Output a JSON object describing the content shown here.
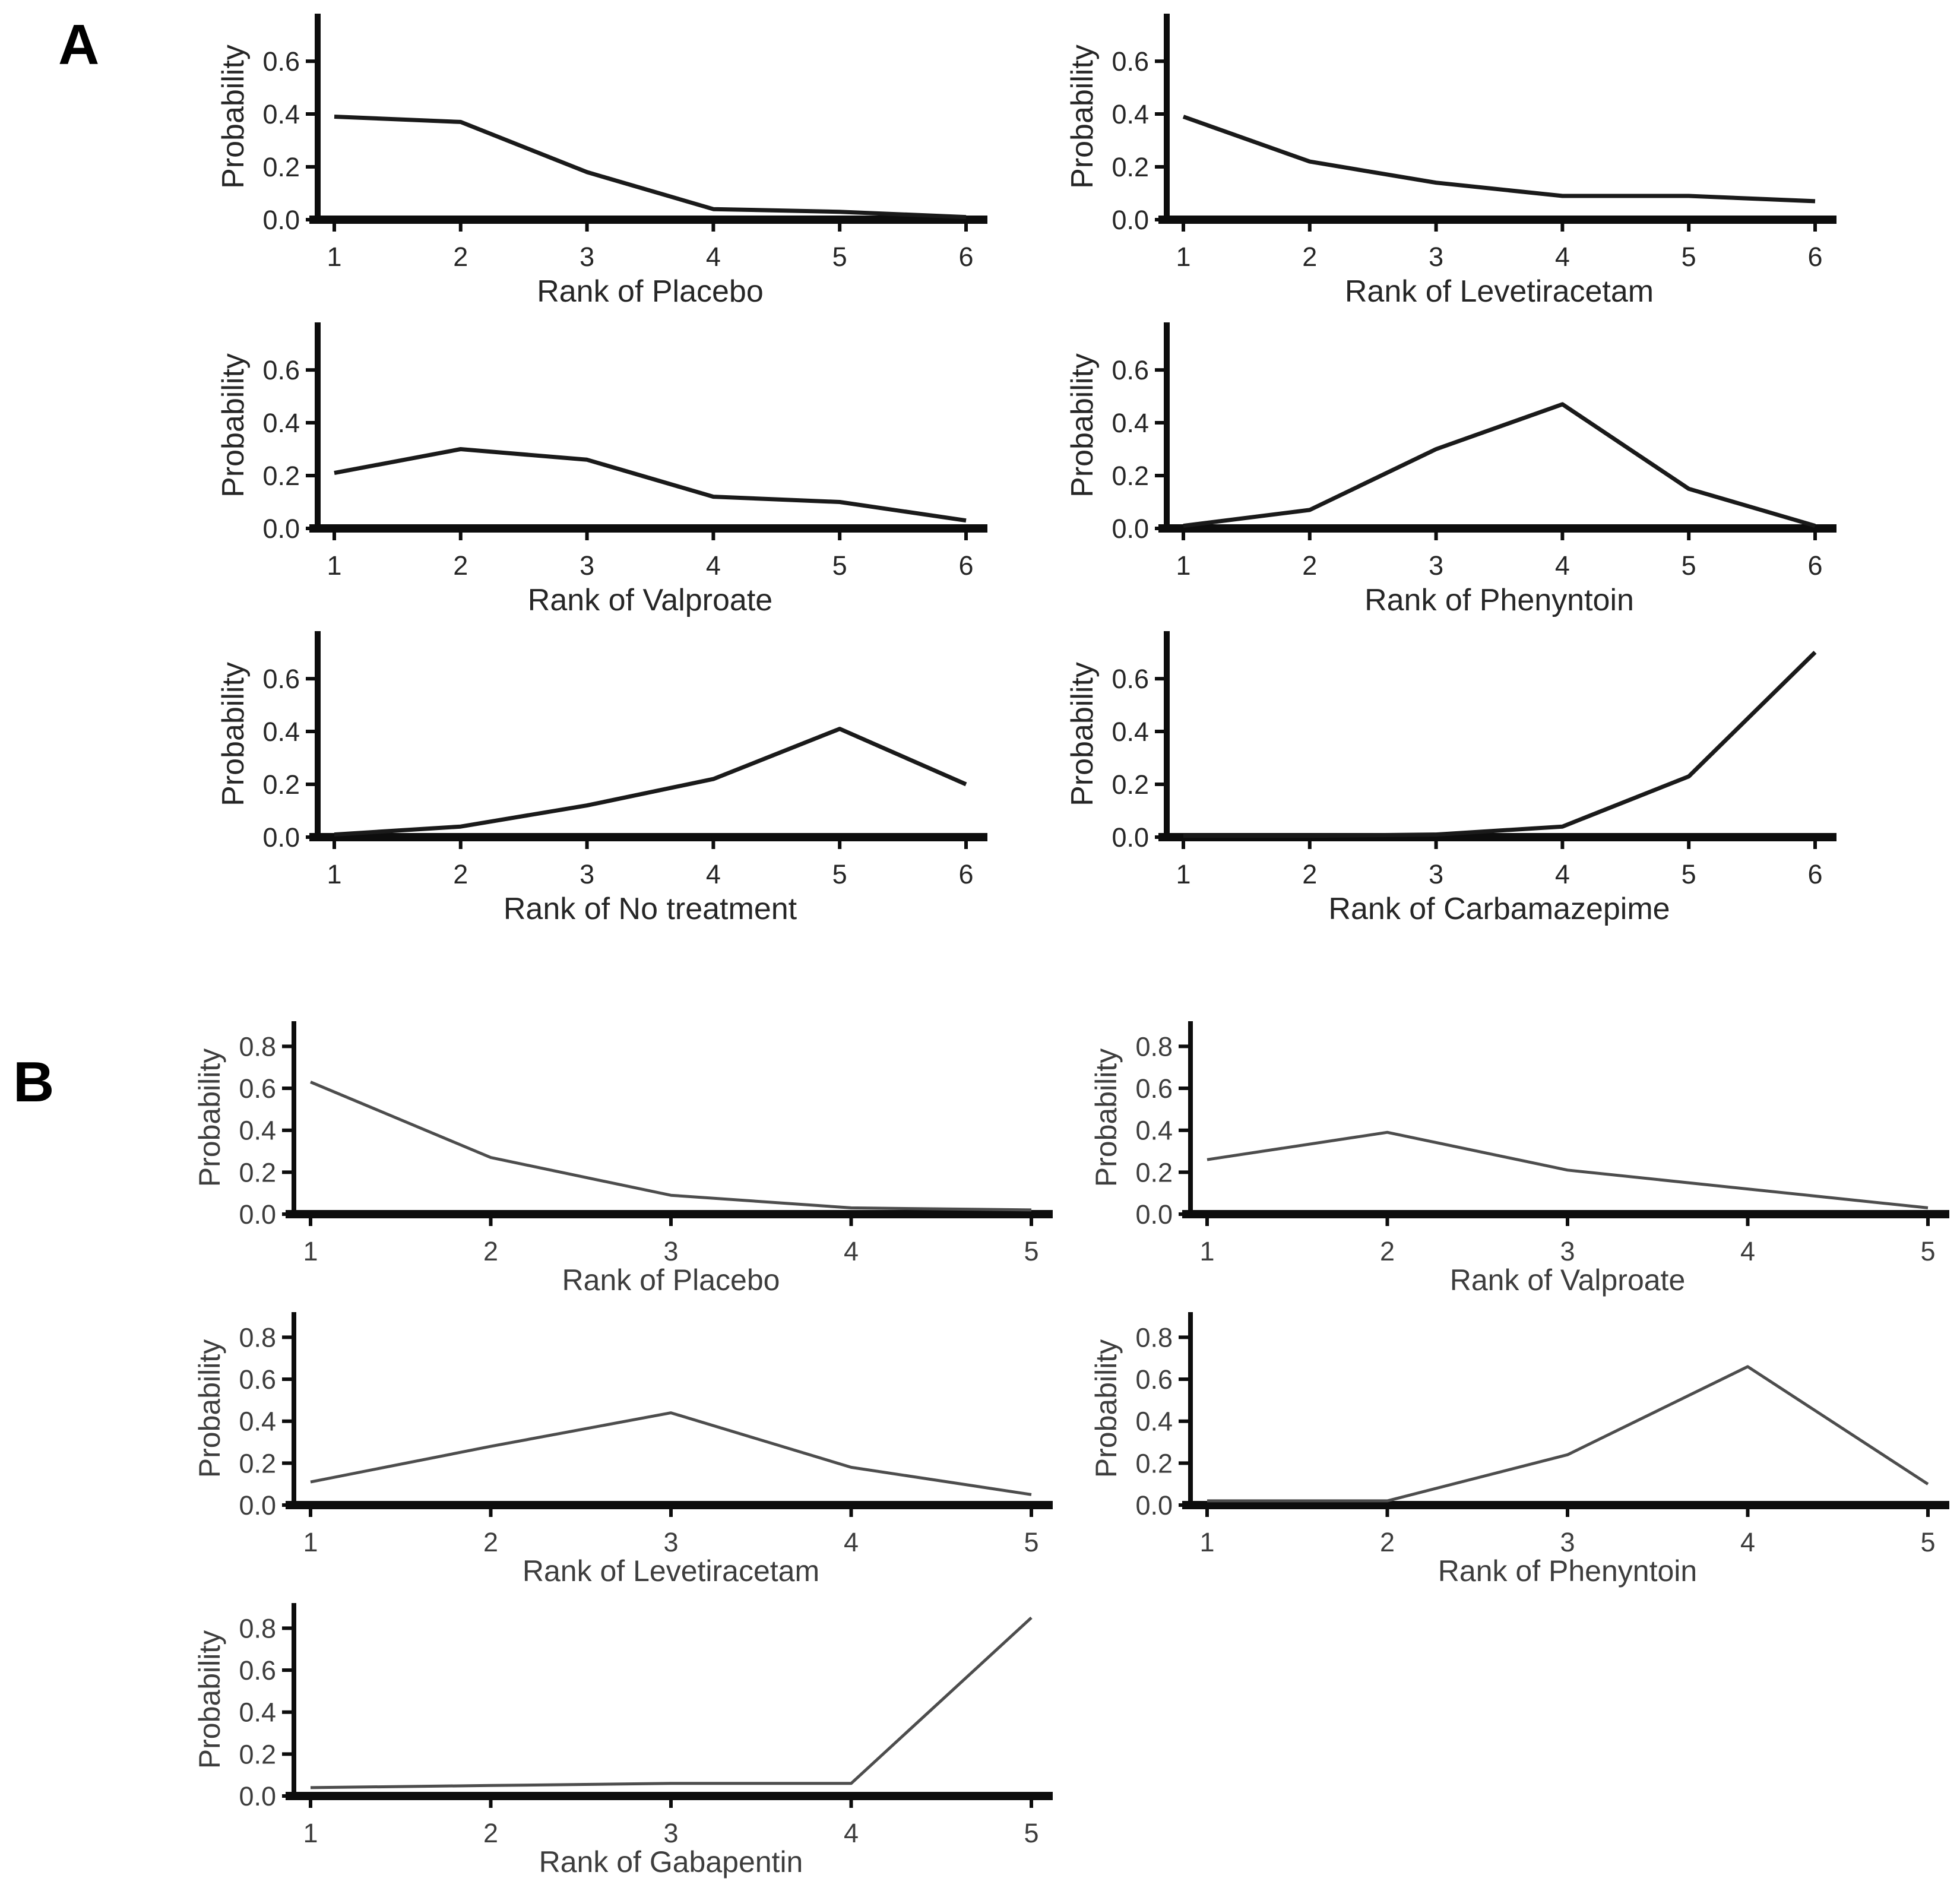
{
  "figure": {
    "background": "#ffffff",
    "line_color_a": "#1a1a1a",
    "line_color_b": "#4d4d4d",
    "axis_color": "#0d0d0d",
    "text_color_a": "#262626",
    "text_color_b": "#3d3d3d"
  },
  "panels": [
    {
      "id": "A",
      "label": "A",
      "ylabel": "Probability",
      "yticks": [
        0.0,
        0.2,
        0.4,
        0.6
      ],
      "ymax": 0.78,
      "line_color": "#1a1a1a",
      "line_width": 7,
      "text_color": "#262626"
    },
    {
      "id": "B",
      "label": "B",
      "ylabel": "Probability",
      "yticks": [
        0.0,
        0.2,
        0.4,
        0.6,
        0.8
      ],
      "ymax": 0.92,
      "line_color": "#4d4d4d",
      "line_width": 5,
      "text_color": "#3d3d3d"
    }
  ],
  "chart_data": [
    {
      "type": "line",
      "panel": "A",
      "title": "",
      "xlabel": "Rank of Placebo",
      "ylabel": "Probability",
      "x": [
        1,
        2,
        3,
        4,
        5,
        6
      ],
      "values": [
        0.39,
        0.37,
        0.18,
        0.04,
        0.03,
        0.01
      ],
      "xticks": [
        1,
        2,
        3,
        4,
        5,
        6
      ],
      "yticks": [
        0.0,
        0.2,
        0.4,
        0.6
      ],
      "ylim": [
        0,
        0.78
      ],
      "grid": false,
      "legend": false
    },
    {
      "type": "line",
      "panel": "A",
      "title": "",
      "xlabel": "Rank of Levetiracetam",
      "ylabel": "Probability",
      "x": [
        1,
        2,
        3,
        4,
        5,
        6
      ],
      "values": [
        0.39,
        0.22,
        0.14,
        0.09,
        0.09,
        0.07
      ],
      "xticks": [
        1,
        2,
        3,
        4,
        5,
        6
      ],
      "yticks": [
        0.0,
        0.2,
        0.4,
        0.6
      ],
      "ylim": [
        0,
        0.78
      ],
      "grid": false,
      "legend": false
    },
    {
      "type": "line",
      "panel": "A",
      "title": "",
      "xlabel": "Rank of Valproate",
      "ylabel": "Probability",
      "x": [
        1,
        2,
        3,
        4,
        5,
        6
      ],
      "values": [
        0.21,
        0.3,
        0.26,
        0.12,
        0.1,
        0.03
      ],
      "xticks": [
        1,
        2,
        3,
        4,
        5,
        6
      ],
      "yticks": [
        0.0,
        0.2,
        0.4,
        0.6
      ],
      "ylim": [
        0,
        0.78
      ],
      "grid": false,
      "legend": false
    },
    {
      "type": "line",
      "panel": "A",
      "title": "",
      "xlabel": "Rank of Phenyntoin",
      "ylabel": "Probability",
      "x": [
        1,
        2,
        3,
        4,
        5,
        6
      ],
      "values": [
        0.01,
        0.07,
        0.3,
        0.47,
        0.15,
        0.01
      ],
      "xticks": [
        1,
        2,
        3,
        4,
        5,
        6
      ],
      "yticks": [
        0.0,
        0.2,
        0.4,
        0.6
      ],
      "ylim": [
        0,
        0.78
      ],
      "grid": false,
      "legend": false
    },
    {
      "type": "line",
      "panel": "A",
      "title": "",
      "xlabel": "Rank of No treatment",
      "ylabel": "Probability",
      "x": [
        1,
        2,
        3,
        4,
        5,
        6
      ],
      "values": [
        0.01,
        0.04,
        0.12,
        0.22,
        0.41,
        0.2
      ],
      "xticks": [
        1,
        2,
        3,
        4,
        5,
        6
      ],
      "yticks": [
        0.0,
        0.2,
        0.4,
        0.6
      ],
      "ylim": [
        0,
        0.78
      ],
      "grid": false,
      "legend": false
    },
    {
      "type": "line",
      "panel": "A",
      "title": "",
      "xlabel": "Rank of Carbamazepime",
      "ylabel": "Probability",
      "x": [
        1,
        2,
        3,
        4,
        5,
        6
      ],
      "values": [
        0.005,
        0.005,
        0.01,
        0.04,
        0.23,
        0.7
      ],
      "xticks": [
        1,
        2,
        3,
        4,
        5,
        6
      ],
      "yticks": [
        0.0,
        0.2,
        0.4,
        0.6
      ],
      "ylim": [
        0,
        0.78
      ],
      "grid": false,
      "legend": false
    },
    {
      "type": "line",
      "panel": "B",
      "title": "",
      "xlabel": "Rank of Placebo",
      "ylabel": "Probability",
      "x": [
        1,
        2,
        3,
        4,
        5
      ],
      "values": [
        0.63,
        0.27,
        0.09,
        0.03,
        0.02
      ],
      "xticks": [
        1,
        2,
        3,
        4,
        5
      ],
      "yticks": [
        0.0,
        0.2,
        0.4,
        0.6,
        0.8
      ],
      "ylim": [
        0,
        0.92
      ],
      "grid": false,
      "legend": false
    },
    {
      "type": "line",
      "panel": "B",
      "title": "",
      "xlabel": "Rank of Valproate",
      "ylabel": "Probability",
      "x": [
        1,
        2,
        3,
        4,
        5
      ],
      "values": [
        0.26,
        0.39,
        0.21,
        0.12,
        0.03
      ],
      "xticks": [
        1,
        2,
        3,
        4,
        5
      ],
      "yticks": [
        0.0,
        0.2,
        0.4,
        0.6,
        0.8
      ],
      "ylim": [
        0,
        0.92
      ],
      "grid": false,
      "legend": false
    },
    {
      "type": "line",
      "panel": "B",
      "title": "",
      "xlabel": "Rank of Levetiracetam",
      "ylabel": "Probability",
      "x": [
        1,
        2,
        3,
        4,
        5
      ],
      "values": [
        0.11,
        0.28,
        0.44,
        0.18,
        0.05
      ],
      "xticks": [
        1,
        2,
        3,
        4,
        5
      ],
      "yticks": [
        0.0,
        0.2,
        0.4,
        0.6,
        0.8
      ],
      "ylim": [
        0,
        0.92
      ],
      "grid": false,
      "legend": false
    },
    {
      "type": "line",
      "panel": "B",
      "title": "",
      "xlabel": "Rank of Phenyntoin",
      "ylabel": "Probability",
      "x": [
        1,
        2,
        3,
        4,
        5
      ],
      "values": [
        0.02,
        0.02,
        0.24,
        0.66,
        0.1
      ],
      "xticks": [
        1,
        2,
        3,
        4,
        5
      ],
      "yticks": [
        0.0,
        0.2,
        0.4,
        0.6,
        0.8
      ],
      "ylim": [
        0,
        0.92
      ],
      "grid": false,
      "legend": false
    },
    {
      "type": "line",
      "panel": "B",
      "title": "",
      "xlabel": "Rank of Gabapentin",
      "ylabel": "Probability",
      "x": [
        1,
        2,
        3,
        4,
        5
      ],
      "values": [
        0.04,
        0.05,
        0.06,
        0.06,
        0.85
      ],
      "xticks": [
        1,
        2,
        3,
        4,
        5
      ],
      "yticks": [
        0.0,
        0.2,
        0.4,
        0.6,
        0.8
      ],
      "ylim": [
        0,
        0.92
      ],
      "grid": false,
      "legend": false
    }
  ]
}
